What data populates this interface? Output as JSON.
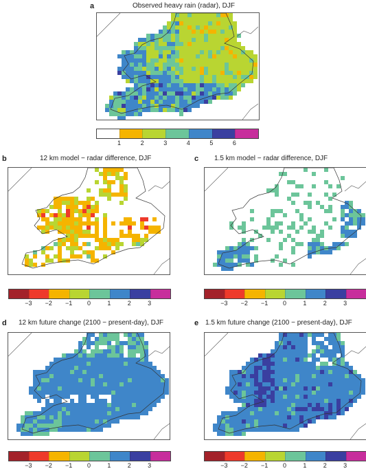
{
  "panels": [
    {
      "id": "a",
      "title": "Observed heavy rain (radar), DJF"
    },
    {
      "id": "b",
      "title": "12 km model − radar difference, DJF"
    },
    {
      "id": "c",
      "title": "1.5 km model − radar difference, DJF"
    },
    {
      "id": "d",
      "title": "12 km future change (2100 − present-day), DJF"
    },
    {
      "id": "e",
      "title": "1.5 km future change (2100 − present-day), DJF"
    }
  ],
  "colorbars": {
    "abs": {
      "colors": [
        "#ffffff",
        "#f5b400",
        "#b9d532",
        "#6cc59a",
        "#3f86c9",
        "#3a3fa0",
        "#c72e9c"
      ],
      "ticks": [
        "1",
        "2",
        "3",
        "4",
        "5",
        "6"
      ]
    },
    "diff": {
      "colors": [
        "#a3222a",
        "#ee3a2b",
        "#f5b400",
        "#b9d532",
        "#6cc59a",
        "#3f86c9",
        "#3a3fa0",
        "#c72e9c"
      ],
      "ticks": [
        "−3",
        "−2",
        "−1",
        "0",
        "1",
        "2",
        "3"
      ]
    }
  }
}
